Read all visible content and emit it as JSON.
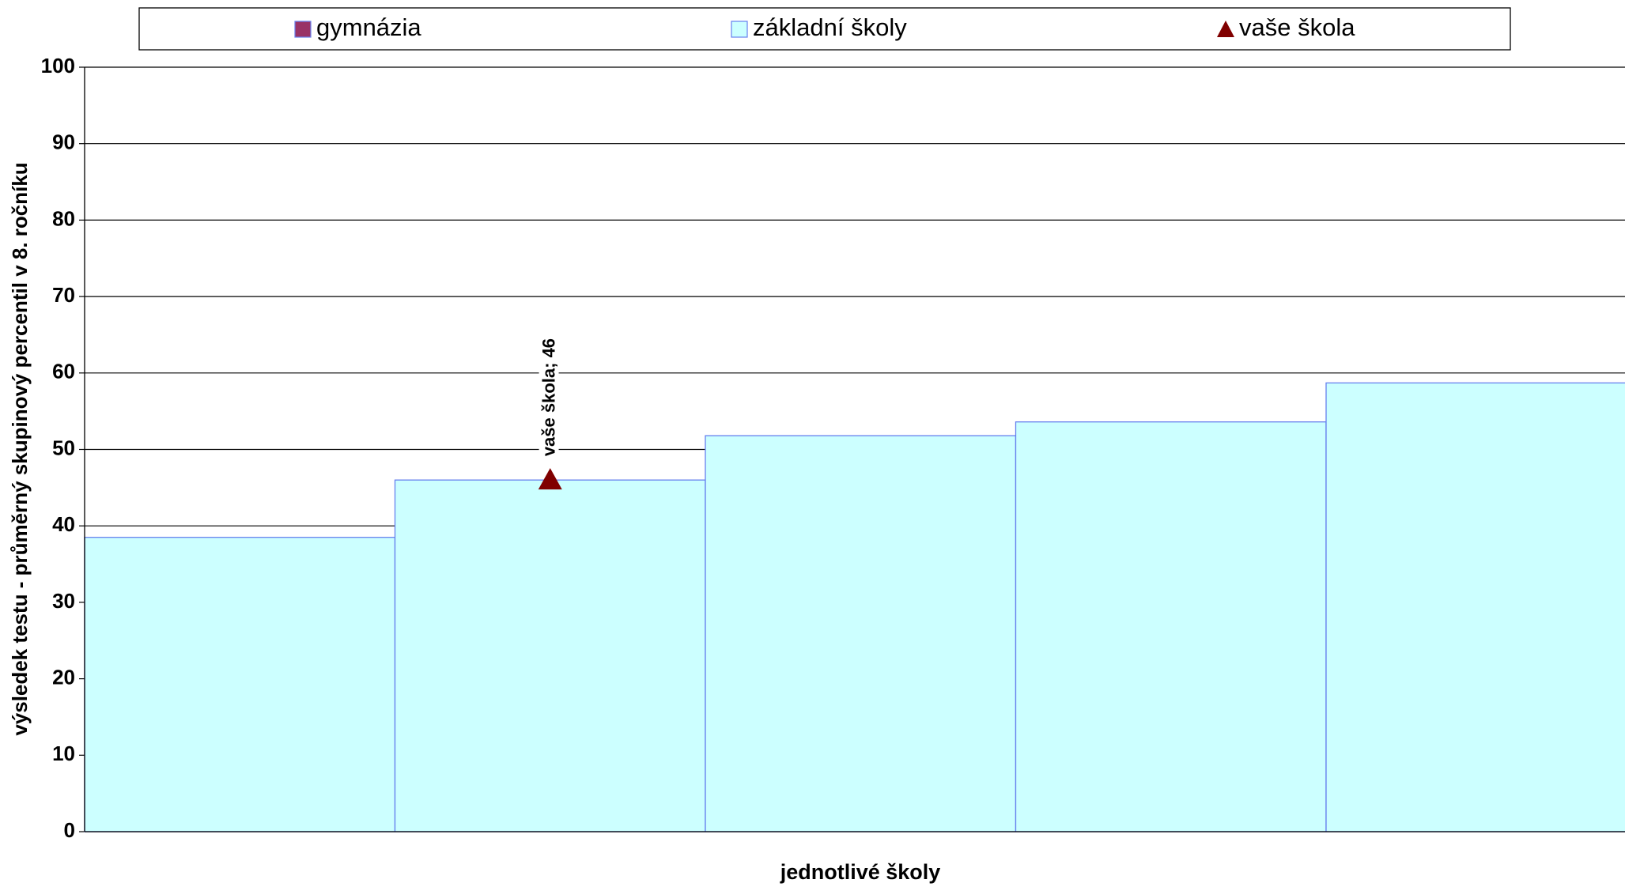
{
  "chart_data": {
    "type": "bar",
    "categories": [
      null,
      null,
      null,
      null,
      null
    ],
    "series": [
      {
        "name": "gymnázia",
        "color": "#993366",
        "values": [
          null,
          null,
          null,
          null,
          null
        ]
      },
      {
        "name": "základní školy",
        "color": "#ccffff",
        "values": [
          38.5,
          46,
          51.8,
          53.6,
          58.7
        ]
      },
      {
        "name": "vaše škola",
        "color": "#800000",
        "type": "scatter",
        "marker": "triangle",
        "values": [
          null,
          46,
          null,
          null,
          null
        ],
        "value_labels": [
          null,
          "vaše škola; 46",
          null,
          null,
          null
        ]
      }
    ],
    "ylim": [
      0,
      100
    ],
    "yticks": [
      0,
      10,
      20,
      30,
      40,
      50,
      60,
      70,
      80,
      90,
      100
    ],
    "grid": true,
    "y_label": "výsledek testu - průměrný skupinový percentil v 8. ročníku",
    "x_label": "jednotlivé školy",
    "legend": "top"
  }
}
